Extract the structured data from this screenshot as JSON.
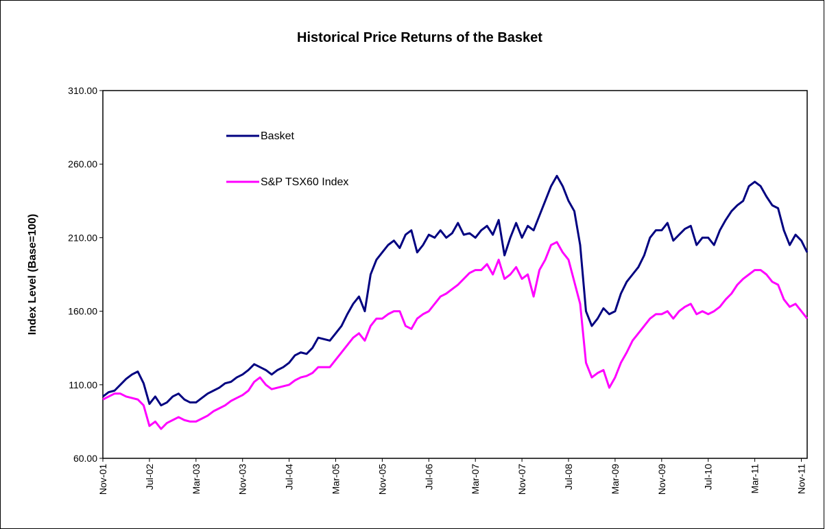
{
  "chart_data": {
    "type": "line",
    "title": "Historical Price Returns of the Basket",
    "y_label": "Index Level (Base=100)",
    "x": [
      "2001-11",
      "2001-12",
      "2002-01",
      "2002-02",
      "2002-03",
      "2002-04",
      "2002-05",
      "2002-06",
      "2002-07",
      "2002-08",
      "2002-09",
      "2002-10",
      "2002-11",
      "2002-12",
      "2003-01",
      "2003-02",
      "2003-03",
      "2003-04",
      "2003-05",
      "2003-06",
      "2003-07",
      "2003-08",
      "2003-09",
      "2003-10",
      "2003-11",
      "2003-12",
      "2004-01",
      "2004-02",
      "2004-03",
      "2004-04",
      "2004-05",
      "2004-06",
      "2004-07",
      "2004-08",
      "2004-09",
      "2004-10",
      "2004-11",
      "2004-12",
      "2005-01",
      "2005-02",
      "2005-03",
      "2005-04",
      "2005-05",
      "2005-06",
      "2005-07",
      "2005-08",
      "2005-09",
      "2005-10",
      "2005-11",
      "2005-12",
      "2006-01",
      "2006-02",
      "2006-03",
      "2006-04",
      "2006-05",
      "2006-06",
      "2006-07",
      "2006-08",
      "2006-09",
      "2006-10",
      "2006-11",
      "2006-12",
      "2007-01",
      "2007-02",
      "2007-03",
      "2007-04",
      "2007-05",
      "2007-06",
      "2007-07",
      "2007-08",
      "2007-09",
      "2007-10",
      "2007-11",
      "2007-12",
      "2008-01",
      "2008-02",
      "2008-03",
      "2008-04",
      "2008-05",
      "2008-06",
      "2008-07",
      "2008-08",
      "2008-09",
      "2008-10",
      "2008-11",
      "2008-12",
      "2009-01",
      "2009-02",
      "2009-03",
      "2009-04",
      "2009-05",
      "2009-06",
      "2009-07",
      "2009-08",
      "2009-09",
      "2009-10",
      "2009-11",
      "2009-12",
      "2010-01",
      "2010-02",
      "2010-03",
      "2010-04",
      "2010-05",
      "2010-06",
      "2010-07",
      "2010-08",
      "2010-09",
      "2010-10",
      "2010-11",
      "2010-12",
      "2011-01",
      "2011-02",
      "2011-03",
      "2011-04",
      "2011-05",
      "2011-06",
      "2011-07",
      "2011-08",
      "2011-09",
      "2011-10",
      "2011-11",
      "2011-12"
    ],
    "series": [
      {
        "name": "Basket",
        "color": "#000080",
        "values": [
          102,
          105,
          106,
          110,
          114,
          117,
          119,
          111,
          97,
          102,
          96,
          98,
          102,
          104,
          100,
          98,
          98,
          101,
          104,
          106,
          108,
          111,
          112,
          115,
          117,
          120,
          124,
          122,
          120,
          117,
          120,
          122,
          125,
          130,
          132,
          131,
          135,
          142,
          141,
          140,
          145,
          150,
          158,
          165,
          170,
          160,
          185,
          195,
          200,
          205,
          208,
          203,
          212,
          215,
          200,
          205,
          212,
          210,
          215,
          210,
          213,
          220,
          212,
          213,
          210,
          215,
          218,
          212,
          222,
          198,
          210,
          220,
          210,
          218,
          215,
          225,
          235,
          245,
          252,
          245,
          235,
          228,
          205,
          160,
          150,
          155,
          162,
          158,
          160,
          172,
          180,
          185,
          190,
          198,
          210,
          215,
          215,
          220,
          208,
          212,
          216,
          218,
          205,
          210,
          210,
          205,
          215,
          222,
          228,
          232,
          235,
          245,
          248,
          245,
          238,
          232,
          230,
          215,
          205,
          212,
          208,
          200
        ]
      },
      {
        "name": "S&P TSX60 Index",
        "color": "#ff00ff",
        "values": [
          100,
          102,
          104,
          104,
          102,
          101,
          100,
          96,
          82,
          85,
          80,
          84,
          86,
          88,
          86,
          85,
          85,
          87,
          89,
          92,
          94,
          96,
          99,
          101,
          103,
          106,
          112,
          115,
          110,
          107,
          108,
          109,
          110,
          113,
          115,
          116,
          118,
          122,
          122,
          122,
          127,
          132,
          137,
          142,
          145,
          140,
          150,
          155,
          155,
          158,
          160,
          160,
          150,
          148,
          155,
          158,
          160,
          165,
          170,
          172,
          175,
          178,
          182,
          186,
          188,
          188,
          192,
          185,
          195,
          182,
          185,
          190,
          182,
          185,
          170,
          188,
          195,
          205,
          207,
          200,
          195,
          180,
          165,
          125,
          115,
          118,
          120,
          108,
          115,
          125,
          132,
          140,
          145,
          150,
          155,
          158,
          158,
          160,
          155,
          160,
          163,
          165,
          158,
          160,
          158,
          160,
          163,
          168,
          172,
          178,
          182,
          185,
          188,
          188,
          185,
          180,
          178,
          168,
          163,
          165,
          160,
          155
        ]
      }
    ],
    "xlim": [
      "2001-11",
      "2011-12"
    ],
    "xticks": [
      {
        "value": "2001-11",
        "label": "Nov-01"
      },
      {
        "value": "2002-07",
        "label": "Jul-02"
      },
      {
        "value": "2003-03",
        "label": "Mar-03"
      },
      {
        "value": "2003-11",
        "label": "Nov-03"
      },
      {
        "value": "2004-07",
        "label": "Jul-04"
      },
      {
        "value": "2005-03",
        "label": "Mar-05"
      },
      {
        "value": "2005-11",
        "label": "Nov-05"
      },
      {
        "value": "2006-07",
        "label": "Jul-06"
      },
      {
        "value": "2007-03",
        "label": "Mar-07"
      },
      {
        "value": "2007-11",
        "label": "Nov-07"
      },
      {
        "value": "2008-07",
        "label": "Jul-08"
      },
      {
        "value": "2009-03",
        "label": "Mar-09"
      },
      {
        "value": "2009-11",
        "label": "Nov-09"
      },
      {
        "value": "2010-07",
        "label": "Jul-10"
      },
      {
        "value": "2011-03",
        "label": "Mar-11"
      },
      {
        "value": "2011-11",
        "label": "Nov-11"
      }
    ],
    "ylim": [
      60,
      310
    ],
    "yticks": [
      {
        "value": 60,
        "label": "60.00"
      },
      {
        "value": 110,
        "label": "110.00"
      },
      {
        "value": 160,
        "label": "160.00"
      },
      {
        "value": 210,
        "label": "210.00"
      },
      {
        "value": 260,
        "label": "260.00"
      },
      {
        "value": 310,
        "label": "310.00"
      }
    ],
    "grid": false,
    "legend": "top-left"
  }
}
